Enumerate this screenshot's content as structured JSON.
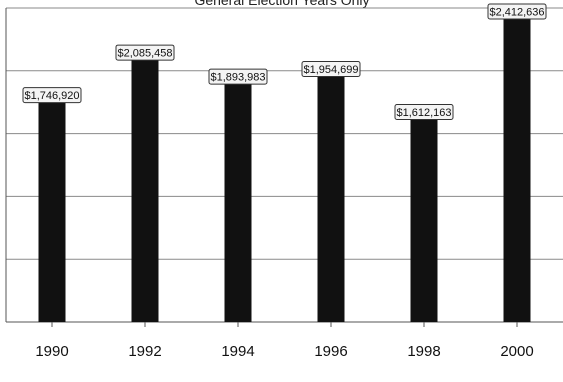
{
  "chart_data": {
    "type": "bar",
    "subtitle": "General Election Years Only",
    "categories": [
      "1990",
      "1992",
      "1994",
      "1996",
      "1998",
      "2000"
    ],
    "values": [
      1746920,
      2085458,
      1893983,
      1954699,
      1612163,
      2412636
    ],
    "data_labels": [
      "$1,746,920",
      "$2,085,458",
      "$1,893,983",
      "$1,954,699",
      "$1,612,163",
      "$2,412,636"
    ],
    "ylim": [
      0,
      2500000
    ],
    "grid": true,
    "legend": "none",
    "bar_color": "#111111",
    "grid_color": "#8a8a8a"
  }
}
